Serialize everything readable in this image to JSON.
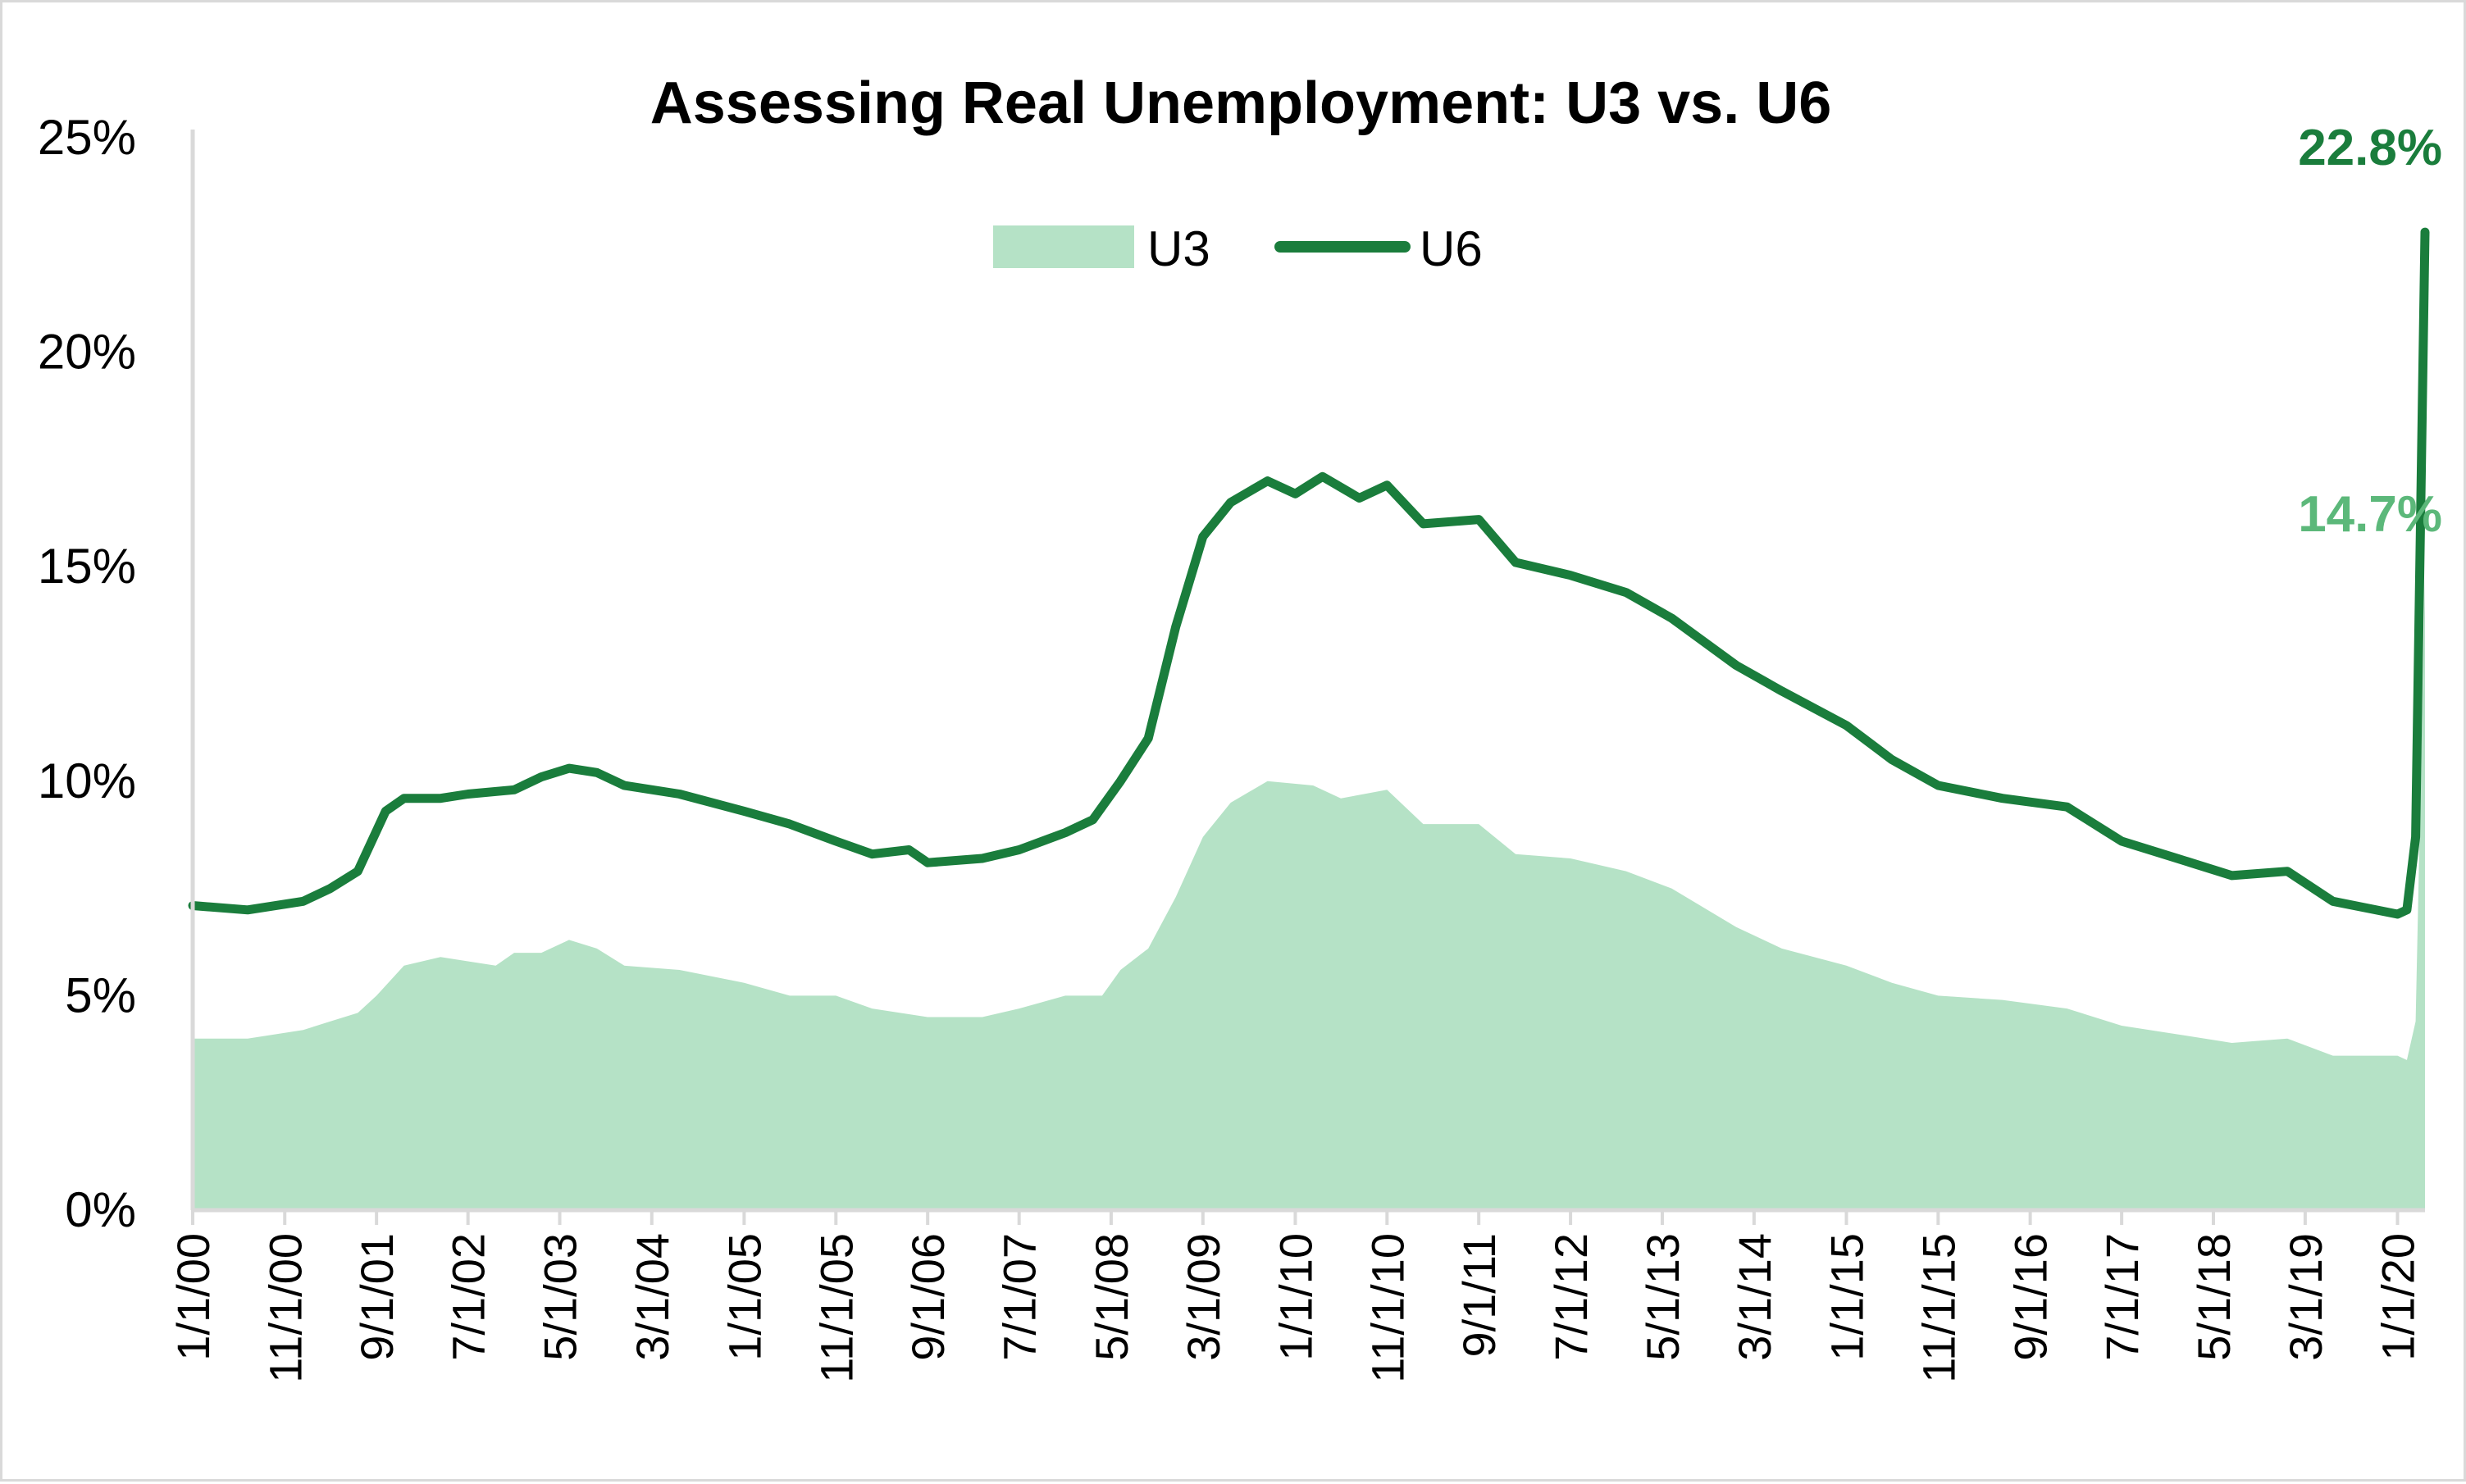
{
  "chart_data": {
    "type": "area",
    "title": "Assessing Real Unemployment: U3 vs. U6",
    "xlabel": "",
    "ylabel": "",
    "ylim": [
      0,
      25
    ],
    "y_ticks": [
      "0%",
      "5%",
      "10%",
      "15%",
      "20%",
      "25%"
    ],
    "x_ticks": [
      "1/1/00",
      "11/1/00",
      "9/1/01",
      "7/1/02",
      "5/1/03",
      "3/1/04",
      "1/1/05",
      "11/1/05",
      "9/1/06",
      "7/1/07",
      "5/1/08",
      "3/1/09",
      "1/1/10",
      "11/1/10",
      "9/1/11",
      "7/1/12",
      "5/1/13",
      "3/1/14",
      "1/1/15",
      "11/1/15",
      "9/1/16",
      "7/1/17",
      "5/1/18",
      "3/1/19",
      "1/1/20"
    ],
    "legend": {
      "position": "top-center",
      "u3_label": "U3",
      "u6_label": "U6"
    },
    "grid": false,
    "colors": {
      "u3": "#b5e2c6",
      "u6": "#1a7d3c",
      "u3_label": "#5cb87a",
      "u6_label": "#1a7d3c",
      "axis": "#d9d9d9"
    },
    "annotations": {
      "u6_last": "22.8%",
      "u3_last": "14.7%"
    },
    "series": [
      {
        "name": "U3",
        "type": "area",
        "points": [
          [
            "1/1/00",
            4.0
          ],
          [
            "7/1/00",
            4.0
          ],
          [
            "1/1/01",
            4.2
          ],
          [
            "4/1/01",
            4.4
          ],
          [
            "7/1/01",
            4.6
          ],
          [
            "9/1/01",
            5.0
          ],
          [
            "12/1/01",
            5.7
          ],
          [
            "4/1/02",
            5.9
          ],
          [
            "7/1/02",
            5.8
          ],
          [
            "10/1/02",
            5.7
          ],
          [
            "12/1/02",
            6.0
          ],
          [
            "3/1/03",
            6.0
          ],
          [
            "6/1/03",
            6.3
          ],
          [
            "9/1/03",
            6.1
          ],
          [
            "12/1/03",
            5.7
          ],
          [
            "6/1/04",
            5.6
          ],
          [
            "1/1/05",
            5.3
          ],
          [
            "6/1/05",
            5.0
          ],
          [
            "11/1/05",
            5.0
          ],
          [
            "3/1/06",
            4.7
          ],
          [
            "9/1/06",
            4.5
          ],
          [
            "3/1/07",
            4.5
          ],
          [
            "7/1/07",
            4.7
          ],
          [
            "12/1/07",
            5.0
          ],
          [
            "4/1/08",
            5.0
          ],
          [
            "6/1/08",
            5.6
          ],
          [
            "9/1/08",
            6.1
          ],
          [
            "12/1/08",
            7.3
          ],
          [
            "3/1/09",
            8.7
          ],
          [
            "6/1/09",
            9.5
          ],
          [
            "10/1/09",
            10.0
          ],
          [
            "3/1/10",
            9.9
          ],
          [
            "6/1/10",
            9.6
          ],
          [
            "11/1/10",
            9.8
          ],
          [
            "3/1/11",
            9.0
          ],
          [
            "9/1/11",
            9.0
          ],
          [
            "1/1/12",
            8.3
          ],
          [
            "7/1/12",
            8.2
          ],
          [
            "1/1/13",
            7.9
          ],
          [
            "6/1/13",
            7.5
          ],
          [
            "1/1/14",
            6.6
          ],
          [
            "6/1/14",
            6.1
          ],
          [
            "1/1/15",
            5.7
          ],
          [
            "6/1/15",
            5.3
          ],
          [
            "11/1/15",
            5.0
          ],
          [
            "6/1/16",
            4.9
          ],
          [
            "1/1/17",
            4.7
          ],
          [
            "7/1/17",
            4.3
          ],
          [
            "1/1/18",
            4.1
          ],
          [
            "7/1/18",
            3.9
          ],
          [
            "1/1/19",
            4.0
          ],
          [
            "6/1/19",
            3.6
          ],
          [
            "1/1/20",
            3.6
          ],
          [
            "2/1/20",
            3.5
          ],
          [
            "3/1/20",
            4.4
          ],
          [
            "4/1/20",
            14.7
          ]
        ]
      },
      {
        "name": "U6",
        "type": "line",
        "points": [
          [
            "1/1/00",
            7.1
          ],
          [
            "7/1/00",
            7.0
          ],
          [
            "1/1/01",
            7.2
          ],
          [
            "4/1/01",
            7.5
          ],
          [
            "7/1/01",
            7.9
          ],
          [
            "10/1/01",
            9.3
          ],
          [
            "12/1/01",
            9.6
          ],
          [
            "4/1/02",
            9.6
          ],
          [
            "7/1/02",
            9.7
          ],
          [
            "12/1/02",
            9.8
          ],
          [
            "3/1/03",
            10.1
          ],
          [
            "6/1/03",
            10.3
          ],
          [
            "9/1/03",
            10.2
          ],
          [
            "12/1/03",
            9.9
          ],
          [
            "6/1/04",
            9.7
          ],
          [
            "1/1/05",
            9.3
          ],
          [
            "6/1/05",
            9.0
          ],
          [
            "11/1/05",
            8.6
          ],
          [
            "3/1/06",
            8.3
          ],
          [
            "7/1/06",
            8.4
          ],
          [
            "9/1/06",
            8.1
          ],
          [
            "3/1/07",
            8.2
          ],
          [
            "7/1/07",
            8.4
          ],
          [
            "12/1/07",
            8.8
          ],
          [
            "3/1/08",
            9.1
          ],
          [
            "6/1/08",
            10.0
          ],
          [
            "9/1/08",
            11.0
          ],
          [
            "12/1/08",
            13.6
          ],
          [
            "3/1/09",
            15.7
          ],
          [
            "6/1/09",
            16.5
          ],
          [
            "10/1/09",
            17.0
          ],
          [
            "1/1/10",
            16.7
          ],
          [
            "4/1/10",
            17.1
          ],
          [
            "8/1/10",
            16.6
          ],
          [
            "11/1/10",
            16.9
          ],
          [
            "3/1/11",
            16.0
          ],
          [
            "9/1/11",
            16.1
          ],
          [
            "1/1/12",
            15.1
          ],
          [
            "7/1/12",
            14.8
          ],
          [
            "1/1/13",
            14.4
          ],
          [
            "6/1/13",
            13.8
          ],
          [
            "1/1/14",
            12.7
          ],
          [
            "6/1/14",
            12.1
          ],
          [
            "1/1/15",
            11.3
          ],
          [
            "6/1/15",
            10.5
          ],
          [
            "11/1/15",
            9.9
          ],
          [
            "6/1/16",
            9.6
          ],
          [
            "1/1/17",
            9.4
          ],
          [
            "7/1/17",
            8.6
          ],
          [
            "1/1/18",
            8.2
          ],
          [
            "7/1/18",
            7.8
          ],
          [
            "1/1/19",
            7.9
          ],
          [
            "6/1/19",
            7.2
          ],
          [
            "1/1/20",
            6.9
          ],
          [
            "2/1/20",
            7.0
          ],
          [
            "3/1/20",
            8.7
          ],
          [
            "4/1/20",
            22.8
          ]
        ]
      }
    ]
  }
}
